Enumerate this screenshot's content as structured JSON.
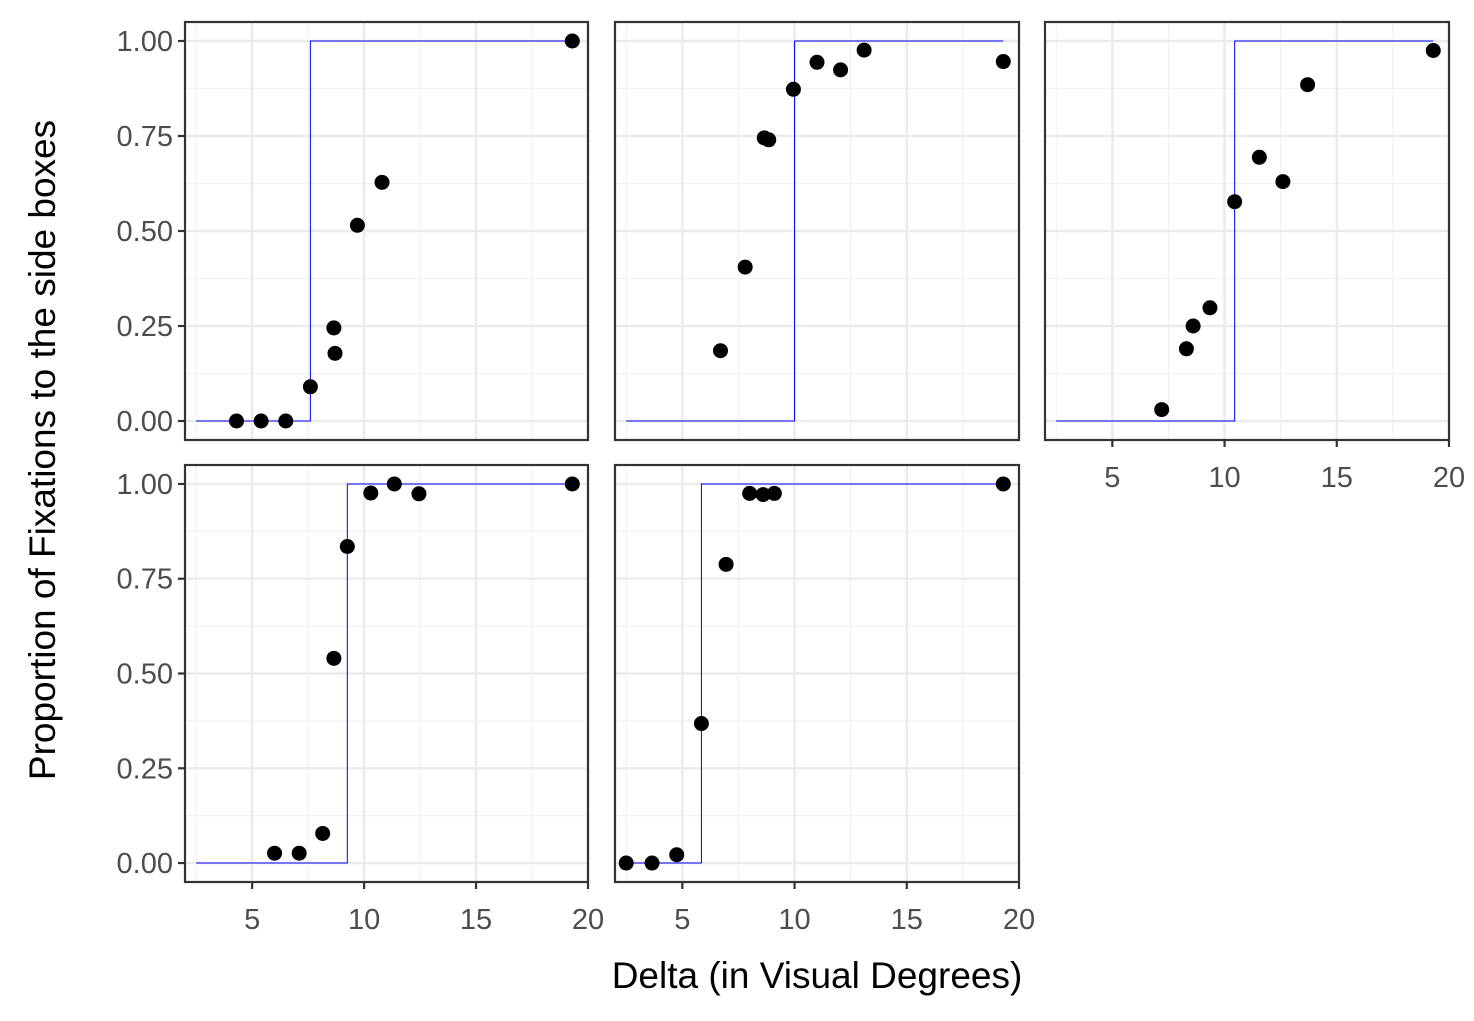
{
  "chart_data": {
    "type": "scatter",
    "xlabel": "Delta (in Visual Degrees)",
    "ylabel": "Proportion of Fixations to the side boxes",
    "xlim": [
      2.0,
      20.0
    ],
    "ylim": [
      -0.05,
      1.05
    ],
    "x_ticks": [
      5,
      10,
      15,
      20
    ],
    "x_tick_labels": [
      "5",
      "10",
      "15",
      "20"
    ],
    "y_ticks": [
      0.0,
      0.25,
      0.5,
      0.75,
      1.0
    ],
    "y_tick_labels": [
      "0.00",
      "0.25",
      "0.50",
      "0.75",
      "1.00"
    ],
    "grid": true,
    "point_color": "#000000",
    "step_color": "#0000ff",
    "step_x_range": [
      2.5,
      19.3
    ],
    "panels": [
      {
        "threshold": 7.6,
        "points": [
          {
            "x": 4.3,
            "y": 0.0
          },
          {
            "x": 5.4,
            "y": 0.0
          },
          {
            "x": 6.5,
            "y": 0.0
          },
          {
            "x": 7.6,
            "y": 0.09
          },
          {
            "x": 8.65,
            "y": 0.245
          },
          {
            "x": 8.7,
            "y": 0.178
          },
          {
            "x": 9.7,
            "y": 0.515
          },
          {
            "x": 10.8,
            "y": 0.628
          },
          {
            "x": 19.3,
            "y": 1.0
          }
        ]
      },
      {
        "threshold": 10.0,
        "points": [
          {
            "x": 6.7,
            "y": 0.185
          },
          {
            "x": 7.8,
            "y": 0.405
          },
          {
            "x": 8.65,
            "y": 0.745
          },
          {
            "x": 8.85,
            "y": 0.74
          },
          {
            "x": 9.95,
            "y": 0.873
          },
          {
            "x": 11.0,
            "y": 0.944
          },
          {
            "x": 12.05,
            "y": 0.924
          },
          {
            "x": 13.1,
            "y": 0.976
          },
          {
            "x": 19.3,
            "y": 0.946
          }
        ]
      },
      {
        "threshold": 10.45,
        "points": [
          {
            "x": 7.2,
            "y": 0.03
          },
          {
            "x": 8.3,
            "y": 0.19
          },
          {
            "x": 8.6,
            "y": 0.25
          },
          {
            "x": 9.35,
            "y": 0.298
          },
          {
            "x": 10.45,
            "y": 0.577
          },
          {
            "x": 11.55,
            "y": 0.694
          },
          {
            "x": 12.6,
            "y": 0.63
          },
          {
            "x": 13.7,
            "y": 0.885
          },
          {
            "x": 19.3,
            "y": 0.975
          }
        ]
      },
      {
        "threshold": 9.25,
        "points": [
          {
            "x": 6.0,
            "y": 0.026
          },
          {
            "x": 7.1,
            "y": 0.026
          },
          {
            "x": 8.15,
            "y": 0.078
          },
          {
            "x": 8.65,
            "y": 0.54
          },
          {
            "x": 9.25,
            "y": 0.835
          },
          {
            "x": 10.3,
            "y": 0.976
          },
          {
            "x": 11.35,
            "y": 1.0
          },
          {
            "x": 12.45,
            "y": 0.974
          },
          {
            "x": 19.3,
            "y": 1.0
          }
        ]
      },
      {
        "threshold": 5.85,
        "points": [
          {
            "x": 2.5,
            "y": 0.0
          },
          {
            "x": 3.65,
            "y": 0.0
          },
          {
            "x": 4.75,
            "y": 0.022
          },
          {
            "x": 5.85,
            "y": 0.368
          },
          {
            "x": 6.95,
            "y": 0.788
          },
          {
            "x": 8.0,
            "y": 0.975
          },
          {
            "x": 8.6,
            "y": 0.972
          },
          {
            "x": 9.1,
            "y": 0.975
          },
          {
            "x": 19.3,
            "y": 1.0
          }
        ]
      }
    ]
  }
}
